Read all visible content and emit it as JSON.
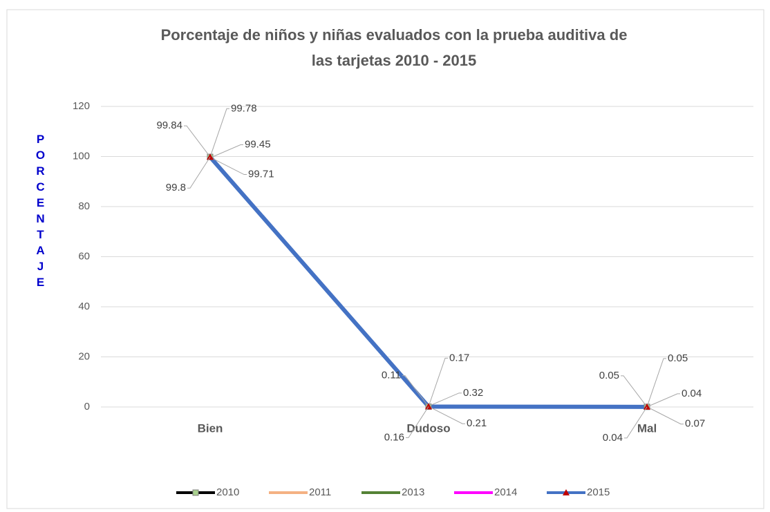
{
  "chart_data": {
    "type": "line",
    "title": [
      "Porcentaje de niños y niñas evaluados con la prueba auditiva de",
      "las tarjetas 2010 - 2015"
    ],
    "y_label": "PORCENTAJE",
    "categories": [
      "Bien",
      "Dudoso",
      "Mal"
    ],
    "series": [
      {
        "name": "2010",
        "color": "#000000",
        "marker": "square",
        "marker_color": "#a9d18e",
        "values": [
          99.84,
          0.11,
          0.05
        ]
      },
      {
        "name": "2011",
        "color": "#f4b183",
        "marker": "none",
        "values": [
          99.78,
          0.17,
          0.05
        ]
      },
      {
        "name": "2013",
        "color": "#548235",
        "marker": "none",
        "values": [
          99.45,
          0.32,
          0.04
        ]
      },
      {
        "name": "2014",
        "color": "#ff00ff",
        "marker": "none",
        "values": [
          99.71,
          0.21,
          0.07
        ]
      },
      {
        "name": "2015",
        "color": "#4472c4",
        "marker": "triangle",
        "marker_color": "#c00000",
        "values": [
          99.8,
          0.16,
          0.04
        ]
      }
    ],
    "ylim": [
      0,
      120
    ],
    "yticks": [
      0,
      20,
      40,
      60,
      80,
      100,
      120
    ],
    "grid": true,
    "legend": "bottom"
  }
}
